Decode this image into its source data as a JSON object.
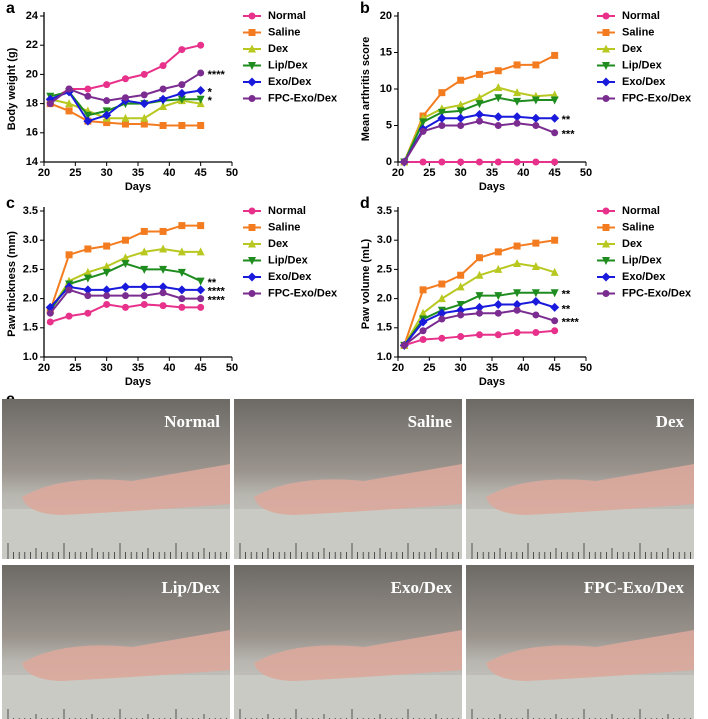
{
  "chart_data": [
    {
      "type": "line",
      "panel": "a",
      "xlabel": "Days",
      "ylabel": "Body weight (g)",
      "x": [
        21,
        24,
        27,
        30,
        33,
        36,
        39,
        42,
        45
      ],
      "xlim": [
        20,
        50
      ],
      "xticks": [
        20,
        25,
        30,
        35,
        40,
        45,
        50
      ],
      "ylim": [
        14,
        24
      ],
      "yticks": [
        14,
        16,
        18,
        20,
        22,
        24
      ],
      "series": [
        {
          "name": "Normal",
          "color": "#e8318a",
          "marker": "circle",
          "values": [
            18.2,
            19.0,
            19.0,
            19.3,
            19.7,
            20.0,
            20.6,
            21.7,
            22.0
          ]
        },
        {
          "name": "Saline",
          "color": "#f47c20",
          "marker": "square",
          "values": [
            18.0,
            17.5,
            16.8,
            16.7,
            16.6,
            16.6,
            16.5,
            16.5,
            16.5
          ]
        },
        {
          "name": "Dex",
          "color": "#b8c820",
          "marker": "triangle",
          "values": [
            18.3,
            18.0,
            17.5,
            17.0,
            17.0,
            17.0,
            17.8,
            18.2,
            18.0
          ]
        },
        {
          "name": "Lip/Dex",
          "color": "#1e8c1e",
          "marker": "triangle-down",
          "values": [
            18.5,
            18.8,
            17.2,
            17.5,
            18.0,
            18.0,
            18.2,
            18.3,
            18.3
          ],
          "annotation": "*"
        },
        {
          "name": "Exo/Dex",
          "color": "#1a1adc",
          "marker": "diamond",
          "values": [
            18.3,
            18.8,
            16.8,
            17.2,
            18.2,
            18.0,
            18.3,
            18.7,
            18.9
          ],
          "annotation": "*"
        },
        {
          "name": "FPC-Exo/Dex",
          "color": "#7b2c91",
          "marker": "circle",
          "values": [
            18.0,
            19.0,
            18.5,
            18.2,
            18.4,
            18.6,
            19.0,
            19.3,
            20.1
          ],
          "annotation": "****"
        }
      ]
    },
    {
      "type": "line",
      "panel": "b",
      "xlabel": "Days",
      "ylabel": "Mean arthritis score",
      "x": [
        21,
        24,
        27,
        30,
        33,
        36,
        39,
        42,
        45
      ],
      "xlim": [
        20,
        50
      ],
      "xticks": [
        20,
        25,
        30,
        35,
        40,
        45,
        50
      ],
      "ylim": [
        0,
        20
      ],
      "yticks": [
        0,
        5,
        10,
        15,
        20
      ],
      "series": [
        {
          "name": "Normal",
          "color": "#e8318a",
          "marker": "circle",
          "values": [
            0,
            0,
            0,
            0,
            0,
            0,
            0,
            0,
            0
          ]
        },
        {
          "name": "Saline",
          "color": "#f47c20",
          "marker": "square",
          "values": [
            0,
            6.3,
            9.5,
            11.2,
            12.0,
            12.5,
            13.3,
            13.3,
            14.6
          ]
        },
        {
          "name": "Dex",
          "color": "#b8c820",
          "marker": "triangle",
          "values": [
            0,
            6.0,
            7.3,
            7.8,
            8.8,
            10.2,
            9.5,
            9.0,
            9.2
          ]
        },
        {
          "name": "Lip/Dex",
          "color": "#1e8c1e",
          "marker": "triangle-down",
          "values": [
            0,
            5.5,
            6.8,
            7.0,
            8.0,
            8.8,
            8.3,
            8.5,
            8.5
          ]
        },
        {
          "name": "Exo/Dex",
          "color": "#1a1adc",
          "marker": "diamond",
          "values": [
            0,
            4.5,
            6.0,
            6.0,
            6.5,
            6.2,
            6.2,
            6.0,
            6.0
          ],
          "annotation": "**"
        },
        {
          "name": "FPC-Exo/Dex",
          "color": "#7b2c91",
          "marker": "circle",
          "values": [
            0,
            4.2,
            5.0,
            5.0,
            5.6,
            5.0,
            5.3,
            5.0,
            4.0
          ],
          "annotation": "***"
        }
      ]
    },
    {
      "type": "line",
      "panel": "c",
      "xlabel": "Days",
      "ylabel": "Paw thickness (mm)",
      "x": [
        21,
        24,
        27,
        30,
        33,
        36,
        39,
        42,
        45
      ],
      "xlim": [
        20,
        50
      ],
      "xticks": [
        20,
        25,
        30,
        35,
        40,
        45,
        50
      ],
      "ylim": [
        1,
        3.5
      ],
      "yticks": [
        {
          "value": 1,
          "label": "1.0"
        },
        1.5,
        {
          "value": 2,
          "label": "2.0"
        },
        2.5,
        {
          "value": 3,
          "label": "3.0"
        },
        3.5
      ],
      "series": [
        {
          "name": "Normal",
          "color": "#e8318a",
          "marker": "circle",
          "values": [
            1.6,
            1.7,
            1.75,
            1.9,
            1.85,
            1.9,
            1.88,
            1.85,
            1.85
          ]
        },
        {
          "name": "Saline",
          "color": "#f47c20",
          "marker": "square",
          "values": [
            1.8,
            2.75,
            2.85,
            2.9,
            3.0,
            3.15,
            3.15,
            3.25,
            3.25
          ]
        },
        {
          "name": "Dex",
          "color": "#b8c820",
          "marker": "triangle",
          "values": [
            1.8,
            2.3,
            2.45,
            2.55,
            2.7,
            2.8,
            2.85,
            2.8,
            2.8
          ]
        },
        {
          "name": "Lip/Dex",
          "color": "#1e8c1e",
          "marker": "triangle-down",
          "values": [
            1.8,
            2.25,
            2.35,
            2.45,
            2.6,
            2.5,
            2.5,
            2.45,
            2.3
          ],
          "annotation": "**"
        },
        {
          "name": "Exo/Dex",
          "color": "#1a1adc",
          "marker": "diamond",
          "values": [
            1.85,
            2.2,
            2.15,
            2.15,
            2.2,
            2.2,
            2.2,
            2.15,
            2.15
          ],
          "annotation": "****"
        },
        {
          "name": "FPC-Exo/Dex",
          "color": "#7b2c91",
          "marker": "circle",
          "values": [
            1.75,
            2.15,
            2.05,
            2.05,
            2.05,
            2.05,
            2.1,
            2.0,
            2.0
          ],
          "annotation": "****"
        }
      ]
    },
    {
      "type": "line",
      "panel": "d",
      "xlabel": "Days",
      "ylabel": "Paw volume (mL)",
      "x": [
        21,
        24,
        27,
        30,
        33,
        36,
        39,
        42,
        45
      ],
      "xlim": [
        20,
        50
      ],
      "xticks": [
        20,
        25,
        30,
        35,
        40,
        45,
        50
      ],
      "ylim": [
        1,
        3.5
      ],
      "yticks": [
        {
          "value": 1,
          "label": "1.0"
        },
        1.5,
        {
          "value": 2,
          "label": "2.0"
        },
        2.5,
        {
          "value": 3,
          "label": "3.0"
        },
        3.5
      ],
      "series": [
        {
          "name": "Normal",
          "color": "#e8318a",
          "marker": "circle",
          "values": [
            1.2,
            1.3,
            1.32,
            1.35,
            1.38,
            1.38,
            1.42,
            1.42,
            1.45
          ]
        },
        {
          "name": "Saline",
          "color": "#f47c20",
          "marker": "square",
          "values": [
            1.2,
            2.15,
            2.25,
            2.4,
            2.7,
            2.8,
            2.9,
            2.95,
            3.0
          ]
        },
        {
          "name": "Dex",
          "color": "#b8c820",
          "marker": "triangle",
          "values": [
            1.2,
            1.75,
            2.0,
            2.2,
            2.4,
            2.5,
            2.6,
            2.55,
            2.45
          ]
        },
        {
          "name": "Lip/Dex",
          "color": "#1e8c1e",
          "marker": "triangle-down",
          "values": [
            1.2,
            1.65,
            1.8,
            1.9,
            2.05,
            2.05,
            2.1,
            2.1,
            2.1
          ],
          "annotation": "**"
        },
        {
          "name": "Exo/Dex",
          "color": "#1a1adc",
          "marker": "diamond",
          "values": [
            1.2,
            1.6,
            1.75,
            1.8,
            1.85,
            1.9,
            1.9,
            1.95,
            1.85
          ],
          "annotation": "**"
        },
        {
          "name": "FPC-Exo/Dex",
          "color": "#7b2c91",
          "marker": "circle",
          "values": [
            1.2,
            1.45,
            1.65,
            1.72,
            1.75,
            1.75,
            1.8,
            1.72,
            1.62
          ],
          "annotation": "****"
        }
      ]
    }
  ],
  "photos": {
    "panel": "e",
    "labels": [
      "Normal",
      "Saline",
      "Dex",
      "Lip/Dex",
      "Exo/Dex",
      "FPC-Exo/Dex"
    ]
  }
}
